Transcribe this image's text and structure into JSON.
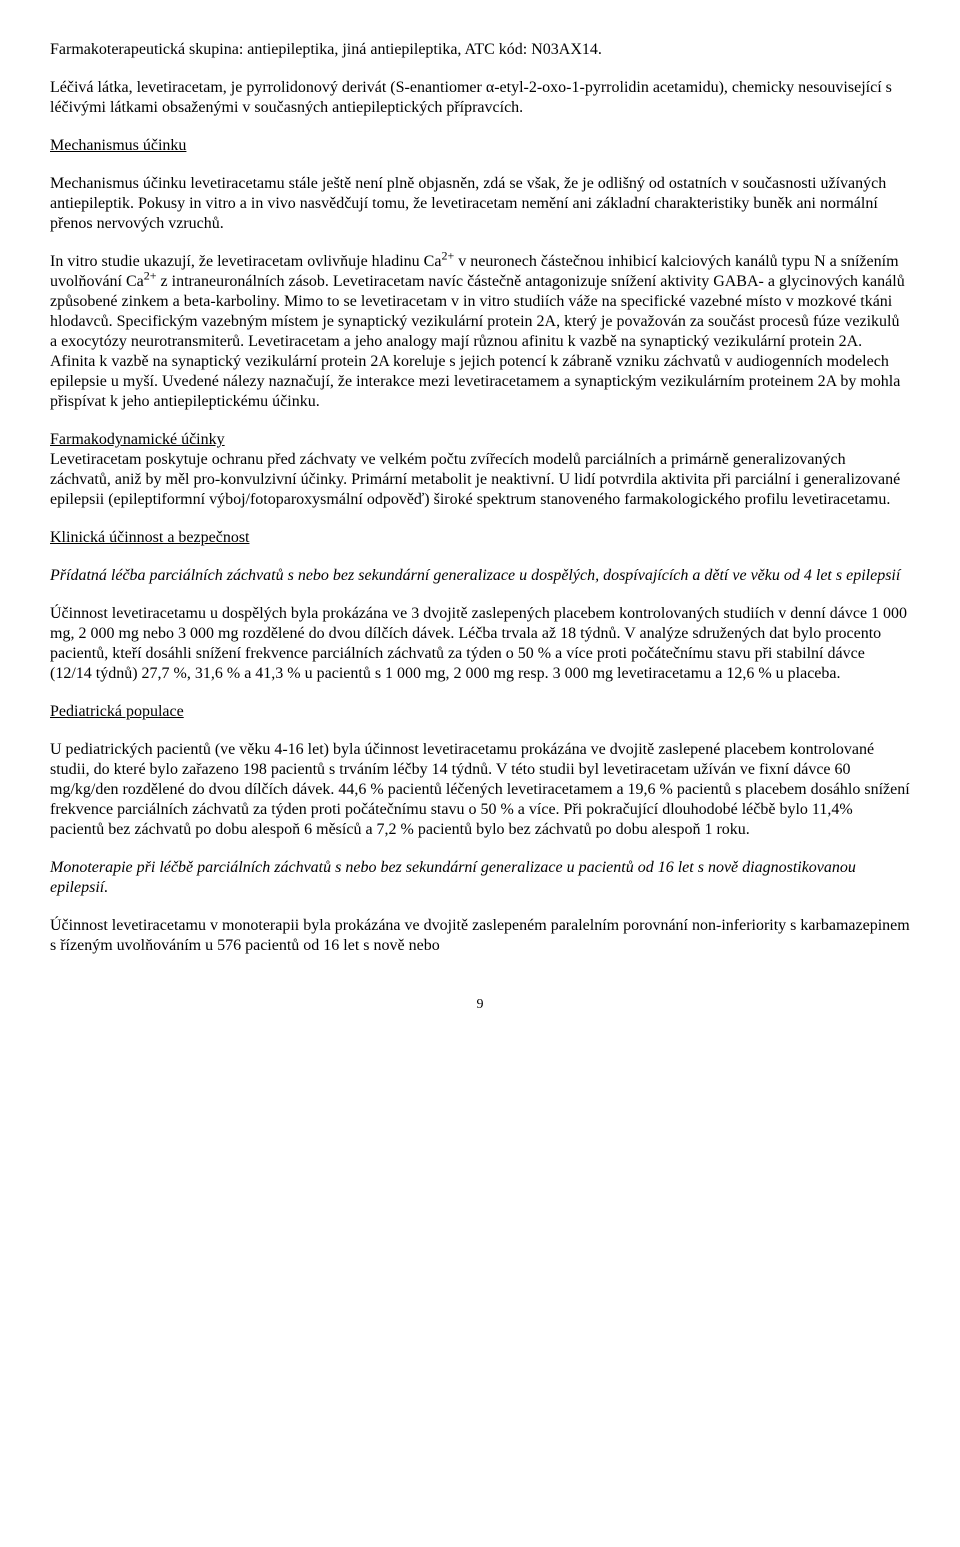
{
  "doc": {
    "p1": "Farmakoterapeutická skupina: antiepileptika, jiná antiepileptika, ATC kód: N03AX14.",
    "p2": "Léčivá látka, levetiracetam, je pyrrolidonový derivát (S-enantiomer α-etyl-2-oxo-1-pyrrolidin acetamidu), chemicky nesouvisející s léčivými látkami obsaženými v současných antiepileptických přípravcích.",
    "h1": "Mechanismus účinku",
    "p3": "Mechanismus účinku levetiracetamu stále ještě není plně objasněn, zdá se však, že je odlišný od ostatních v současnosti užívaných antiepileptik. Pokusy in vitro a in vivo nasvědčují tomu, že levetiracetam nemění ani základní charakteristiky buněk ani normální přenos nervových vzruchů.",
    "p4_a": "In vitro studie ukazují, že levetiracetam ovlivňuje hladinu Ca",
    "p4_b": " v neuronech částečnou inhibicí kalciových kanálů typu N a snížením uvolňování Ca",
    "p4_c": " z intraneuronálních zásob. Levetiracetam navíc částečně antagonizuje snížení aktivity GABA- a glycinových kanálů způsobené zinkem a beta-karboliny. Mimo to se levetiracetam v in vitro studiích váže na specifické vazebné místo v mozkové tkáni hlodavců. Specifickým vazebným místem je synaptický vezikulární protein 2A, který je považován za součást procesů fúze vezikulů a exocytózy neurotransmiterů. Levetiracetam a jeho analogy mají různou afinitu k vazbě na synaptický vezikulární protein 2A. Afinita k vazbě na synaptický vezikulární protein 2A koreluje s jejich potencí k zábraně vzniku záchvatů v audiogenních modelech epilepsie u myší. Uvedené nálezy naznačují, že interakce mezi levetiracetamem a synaptickým vezikulárním proteinem 2A by mohla přispívat k jeho antiepileptickému účinku.",
    "sup": "2+",
    "h2": "Farmakodynamické účinky",
    "p5": "Levetiracetam poskytuje ochranu před záchvaty ve velkém počtu zvířecích modelů parciálních a primárně generalizovaných záchvatů, aniž by měl pro-konvulzivní účinky. Primární metabolit je neaktivní. U lidí potvrdila aktivita při parciální i generalizované epilepsii (epileptiformní výboj/fotoparoxysmální odpověď) široké spektrum stanoveného farmakologického profilu levetiracetamu.",
    "h3": "Klinická účinnost a bezpečnost",
    "p6": "Přídatná léčba parciálních záchvatů s nebo bez sekundární generalizace u dospělých, dospívajících a dětí ve věku od 4 let s epilepsií",
    "p7": "Účinnost levetiracetamu u dospělých byla prokázána ve 3 dvojitě zaslepených placebem kontrolovaných studiích v denní dávce 1 000 mg, 2 000 mg nebo 3 000 mg rozdělené do dvou dílčích dávek. Léčba trvala až 18 týdnů. V analýze sdružených dat bylo procento pacientů, kteří dosáhli snížení frekvence parciálních záchvatů za týden o 50 % a více proti počátečnímu stavu při stabilní dávce (12/14 týdnů) 27,7 %, 31,6 % a 41,3 % u pacientů s 1 000 mg, 2 000 mg resp. 3 000 mg levetiracetamu a 12,6 % u placeba.",
    "h4": "Pediatrická populace",
    "p8": "U pediatrických pacientů (ve věku 4-16 let) byla účinnost levetiracetamu prokázána ve dvojitě zaslepené placebem kontrolované studii, do které bylo zařazeno 198 pacientů s trváním léčby 14 týdnů. V této studii byl levetiracetam užíván ve fixní dávce 60 mg/kg/den rozdělené do dvou dílčích dávek. 44,6 % pacientů léčených levetiracetamem a 19,6 % pacientů s placebem dosáhlo snížení frekvence parciálních záchvatů za týden proti počátečnímu stavu o 50 % a více. Při pokračující dlouhodobé léčbě bylo 11,4% pacientů bez záchvatů po dobu alespoň 6 měsíců a 7,2 % pacientů bylo bez záchvatů po dobu alespoň 1 roku.",
    "p9": "Monoterapie při léčbě parciálních záchvatů s nebo bez sekundární generalizace u pacientů od 16 let s nově diagnostikovanou epilepsií.",
    "p10": "Účinnost levetiracetamu v monoterapii byla prokázána ve dvojitě zaslepeném paralelním porovnání non-inferiority s karbamazepinem s řízeným uvolňováním u 576 pacientů od 16 let s nově nebo",
    "page_num": "9"
  }
}
